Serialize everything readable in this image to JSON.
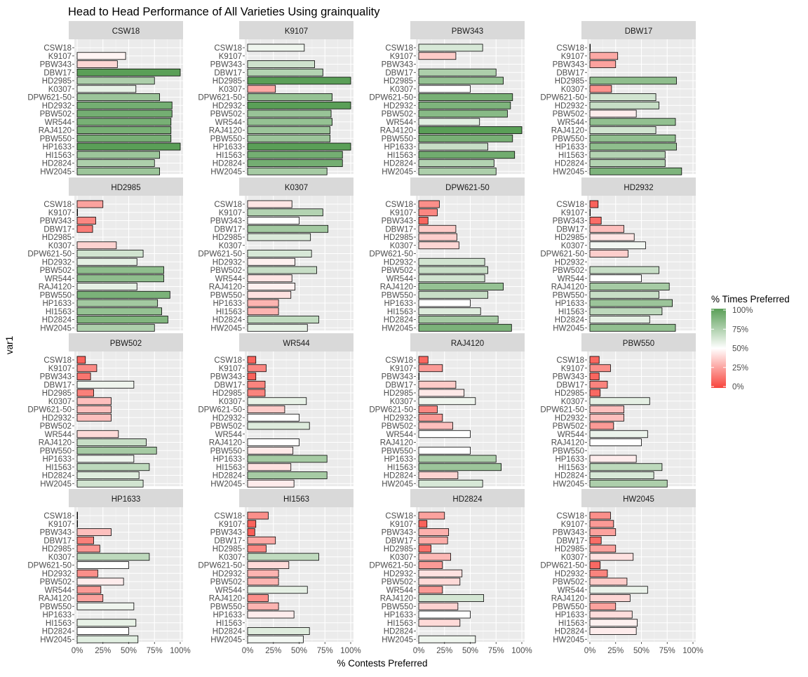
{
  "title": "Head to Head Performance of All Varieties Using grainquality",
  "x_axis_title": "% Contests Preferred",
  "y_axis_title": "var1",
  "legend": {
    "title": "% Times Preferred",
    "labels": [
      "100%",
      "75%",
      "50%",
      "25%",
      "0%"
    ],
    "low_color": "#f8443c",
    "mid_color": "#ffffff",
    "high_color": "#5a9f57"
  },
  "x_tick_labels": [
    "0%",
    "25%",
    "50%",
    "75%",
    "100%"
  ],
  "varieties": [
    "CSW18",
    "K9107",
    "PBW343",
    "DBW17",
    "HD2985",
    "K0307",
    "DPW621-50",
    "HD2932",
    "PBW502",
    "WR544",
    "RAJ4120",
    "PBW550",
    "HP1633",
    "HI1563",
    "HD2824",
    "HW2045"
  ],
  "chart_data": {
    "type": "bar",
    "orientation": "horizontal",
    "facet_by": "var2",
    "xlabel": "% Contests Preferred",
    "ylabel": "var1",
    "xlim": [
      0,
      100
    ],
    "grid": true,
    "legend_position": "right",
    "categories": [
      "CSW18",
      "K9107",
      "PBW343",
      "DBW17",
      "HD2985",
      "K0307",
      "DPW621-50",
      "HD2932",
      "PBW502",
      "WR544",
      "RAJ4120",
      "PBW550",
      "HP1633",
      "HI1563",
      "HD2824",
      "HW2045"
    ],
    "panels": [
      {
        "name": "CSW18",
        "values": [
          null,
          47,
          39,
          100,
          75,
          57,
          80,
          92,
          92,
          91,
          91,
          91,
          100,
          80,
          75,
          80
        ]
      },
      {
        "name": "K9107",
        "values": [
          55,
          null,
          65,
          73,
          100,
          27,
          82,
          100,
          81,
          82,
          80,
          80,
          100,
          92,
          92,
          77
        ]
      },
      {
        "name": "PBW343",
        "values": [
          62,
          36,
          null,
          75,
          82,
          50,
          91,
          89,
          86,
          59,
          100,
          91,
          67,
          93,
          73,
          75
        ]
      },
      {
        "name": "DBW17",
        "values": [
          0,
          27,
          25,
          null,
          84,
          21,
          64,
          67,
          45,
          83,
          64,
          83,
          84,
          73,
          73,
          89
        ]
      },
      {
        "name": "HD2985",
        "values": [
          25,
          0,
          18,
          15,
          null,
          38,
          64,
          58,
          84,
          84,
          58,
          90,
          78,
          82,
          88,
          75
        ]
      },
      {
        "name": "K0307",
        "values": [
          43,
          73,
          50,
          78,
          61,
          null,
          62,
          46,
          67,
          43,
          46,
          42,
          30,
          30,
          69,
          58
        ]
      },
      {
        "name": "DPW621-50",
        "values": [
          20,
          18,
          9,
          36,
          37,
          39,
          null,
          64,
          67,
          64,
          82,
          67,
          50,
          60,
          77,
          90
        ]
      },
      {
        "name": "HD2932",
        "values": [
          8,
          0,
          11,
          33,
          43,
          54,
          37,
          null,
          67,
          50,
          77,
          67,
          80,
          70,
          58,
          83
        ]
      },
      {
        "name": "PBW502",
        "values": [
          8,
          19,
          13,
          55,
          16,
          33,
          33,
          33,
          null,
          40,
          67,
          77,
          55,
          70,
          60,
          64
        ]
      },
      {
        "name": "WR544",
        "values": [
          8,
          18,
          8,
          17,
          17,
          57,
          36,
          50,
          60,
          null,
          50,
          44,
          77,
          42,
          77,
          45
        ]
      },
      {
        "name": "RAJ4120",
        "values": [
          9,
          23,
          0,
          36,
          44,
          55,
          18,
          23,
          33,
          50,
          null,
          50,
          75,
          80,
          38,
          62
        ]
      },
      {
        "name": "PBW550",
        "values": [
          9,
          20,
          9,
          17,
          10,
          58,
          33,
          33,
          23,
          56,
          50,
          null,
          45,
          70,
          62,
          75
        ]
      },
      {
        "name": "HP1633",
        "values": [
          0,
          0,
          33,
          16,
          22,
          70,
          50,
          20,
          45,
          23,
          25,
          55,
          null,
          57,
          50,
          59
        ]
      },
      {
        "name": "HI1563",
        "values": [
          20,
          8,
          7,
          27,
          18,
          69,
          40,
          30,
          30,
          58,
          20,
          30,
          45,
          null,
          60,
          54
        ]
      },
      {
        "name": "HD2824",
        "values": [
          25,
          8,
          29,
          28,
          12,
          31,
          23,
          42,
          40,
          23,
          63,
          38,
          50,
          40,
          null,
          55
        ]
      },
      {
        "name": "HW2045",
        "values": [
          20,
          23,
          25,
          11,
          25,
          42,
          10,
          17,
          36,
          56,
          39,
          25,
          41,
          46,
          45,
          null
        ]
      }
    ]
  }
}
